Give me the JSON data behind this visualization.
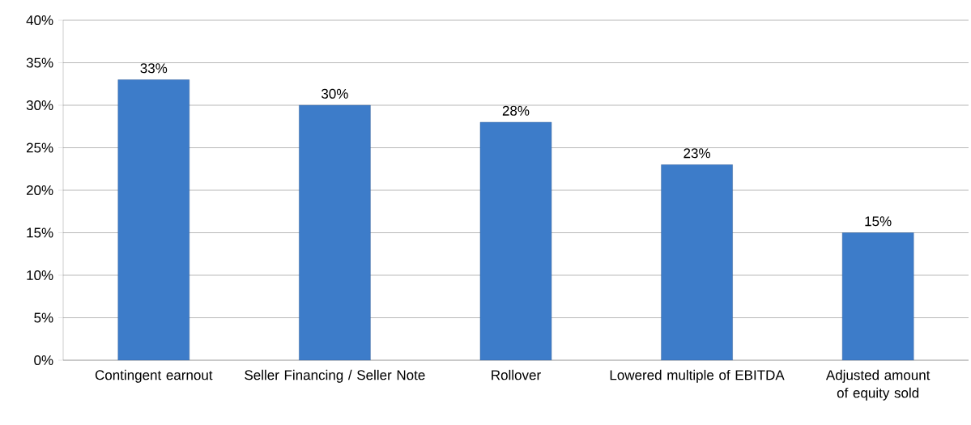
{
  "chart_data": {
    "type": "bar",
    "categories": [
      "Contingent earnout",
      "Seller Financing / Seller Note",
      "Rollover",
      "Lowered multiple of EBITDA",
      "Adjusted amount of equity  sold"
    ],
    "values": [
      33,
      30,
      28,
      23,
      15
    ],
    "value_labels": [
      "33%",
      "30%",
      "28%",
      "23%",
      "15%"
    ],
    "color": "#3d7cc9",
    "ylim": [
      0,
      40
    ],
    "yticks": [
      {
        "value": 0,
        "label": "0%"
      },
      {
        "value": 5,
        "label": "5%"
      },
      {
        "value": 10,
        "label": "10%"
      },
      {
        "value": 15,
        "label": "15%"
      },
      {
        "value": 20,
        "label": "20%"
      },
      {
        "value": 25,
        "label": "25%"
      },
      {
        "value": 30,
        "label": "30%"
      },
      {
        "value": 35,
        "label": "35%"
      },
      {
        "value": 40,
        "label": "40%"
      }
    ],
    "grid": "y"
  }
}
